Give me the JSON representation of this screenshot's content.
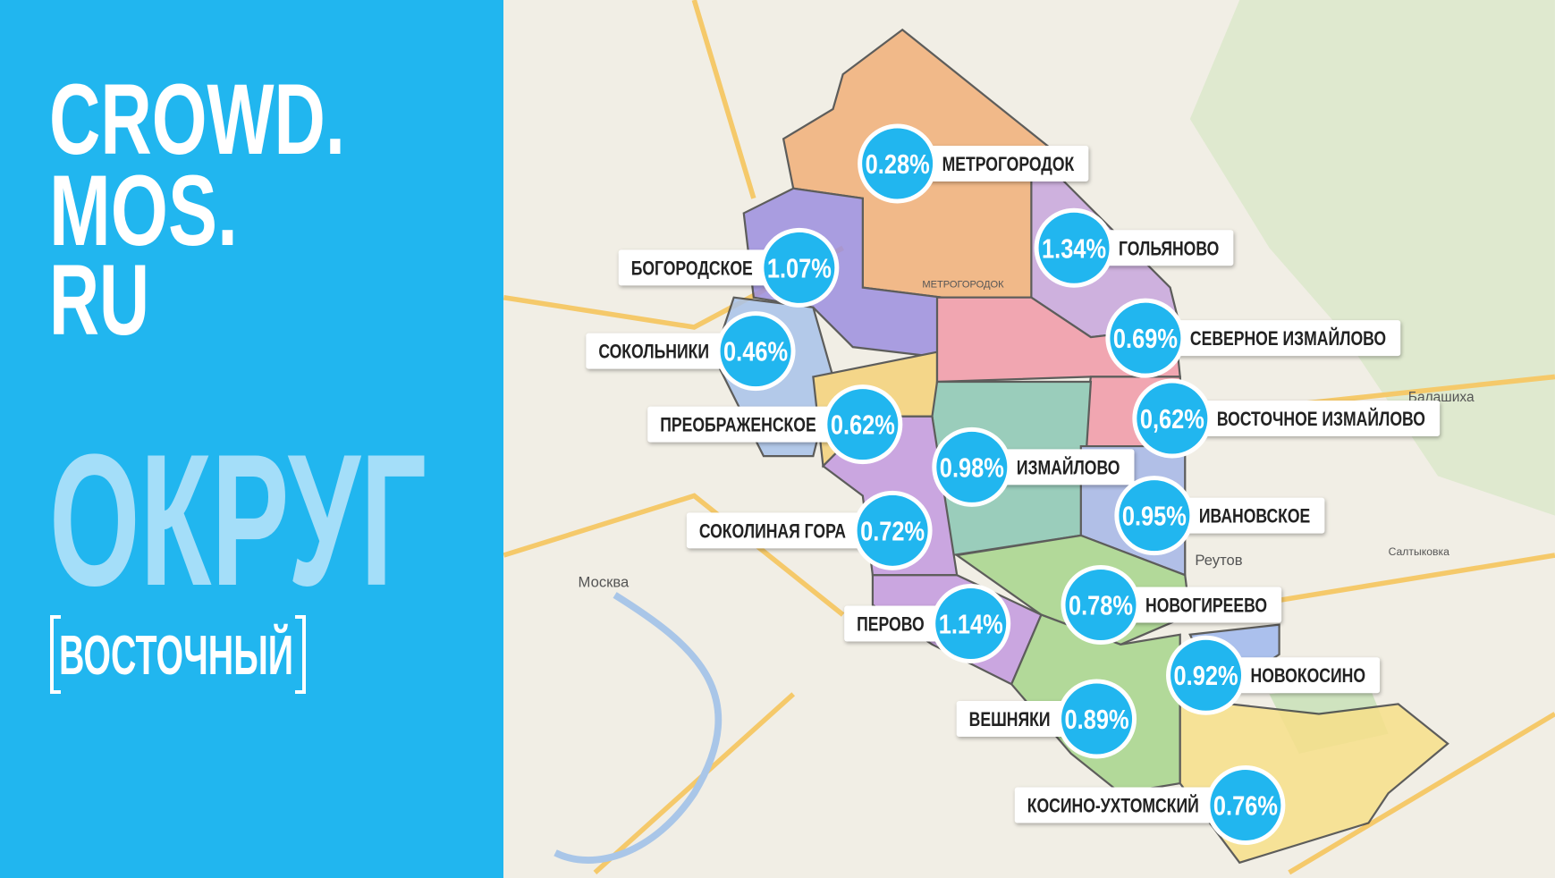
{
  "brand": [
    "CROWD.",
    "MOS.",
    "RU"
  ],
  "section": "ОКРУГ",
  "district": "ВОСТОЧНЫЙ",
  "areas": [
    {
      "name": "МЕТРОГОРОДОК",
      "share": "0.28%"
    },
    {
      "name": "ГОЛЬЯНОВО",
      "share": "1.34%"
    },
    {
      "name": "БОГОРОДСКОЕ",
      "share": "1.07%"
    },
    {
      "name": "СОКОЛЬНИКИ",
      "share": "0.46%"
    },
    {
      "name": "СЕВЕРНОЕ ИЗМАЙЛОВО",
      "share": "0.69%"
    },
    {
      "name": "ПРЕОБРАЖЕНСКОЕ",
      "share": "0.62%"
    },
    {
      "name": "ВОСТОЧНОЕ ИЗМАЙЛОВО",
      "share": "0,62%"
    },
    {
      "name": "ИЗМАЙЛОВО",
      "share": "0.98%"
    },
    {
      "name": "ИВАНОВСКОЕ",
      "share": "0.95%"
    },
    {
      "name": "СОКОЛИНАЯ ГОРА",
      "share": "0.72%"
    },
    {
      "name": "НОВОГИРЕЕВО",
      "share": "0.78%"
    },
    {
      "name": "ПЕРОВО",
      "share": "1.14%"
    },
    {
      "name": "НОВОКОСИНО",
      "share": "0.92%"
    },
    {
      "name": "ВЕШНЯКИ",
      "share": "0.89%"
    },
    {
      "name": "КОСИНО-УХТОМСКИЙ",
      "share": "0.76%"
    }
  ],
  "map_labels": [
    "Москва",
    "Реутов",
    "Балашиха",
    "МЕТРОГОРОДОК",
    "Салтыковка"
  ]
}
